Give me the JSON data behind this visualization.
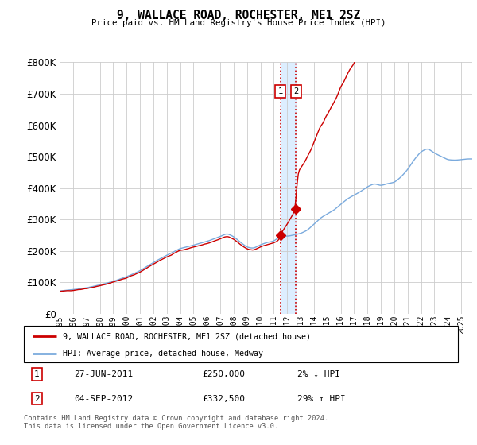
{
  "title": "9, WALLACE ROAD, ROCHESTER, ME1 2SZ",
  "subtitle": "Price paid vs. HM Land Registry's House Price Index (HPI)",
  "ylim": [
    0,
    800000
  ],
  "xlim_start": 1995.0,
  "xlim_end": 2025.83,
  "red_line_label": "9, WALLACE ROAD, ROCHESTER, ME1 2SZ (detached house)",
  "blue_line_label": "HPI: Average price, detached house, Medway",
  "sale1_x": 2011.49,
  "sale1_y": 250000,
  "sale1_label": "1",
  "sale1_date": "27-JUN-2011",
  "sale1_price": "£250,000",
  "sale1_hpi": "2% ↓ HPI",
  "sale2_x": 2012.67,
  "sale2_y": 332500,
  "sale2_label": "2",
  "sale2_date": "04-SEP-2012",
  "sale2_price": "£332,500",
  "sale2_hpi": "29% ↑ HPI",
  "footer": "Contains HM Land Registry data © Crown copyright and database right 2024.\nThis data is licensed under the Open Government Licence v3.0.",
  "red_color": "#cc0000",
  "blue_color": "#7aaadd",
  "grid_color": "#cccccc",
  "shaded_color": "#ddeeff",
  "marker_box_color": "#cc0000"
}
